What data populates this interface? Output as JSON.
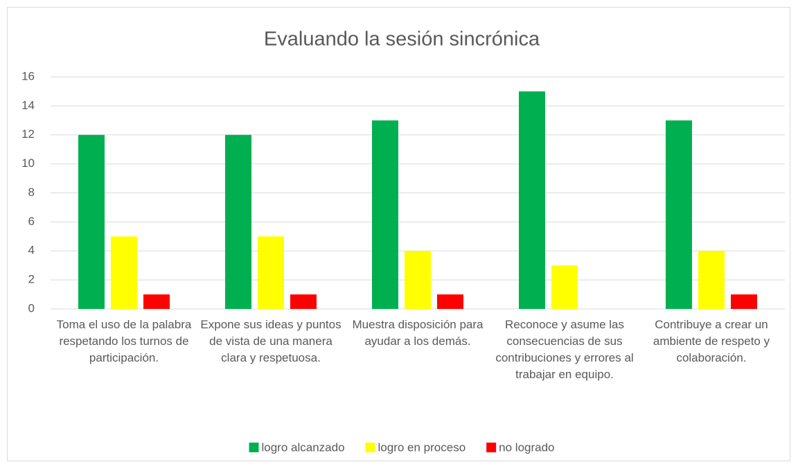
{
  "chart_data": {
    "type": "bar",
    "title": "Evaluando la sesión sincrónica",
    "categories": [
      "Toma el uso de la palabra respetando los turnos de participación.",
      "Expone sus ideas y puntos de vista de una manera clara y respetuosa.",
      "Muestra disposición para ayudar a los demás.",
      "Reconoce y asume las consecuencias de sus contribuciones y errores al trabajar en equipo.",
      "Contribuye a crear un ambiente de respeto y colaboración."
    ],
    "series": [
      {
        "name": "logro alcanzado",
        "color": "#00b050",
        "values": [
          12,
          12,
          13,
          15,
          13
        ]
      },
      {
        "name": "logro en proceso",
        "color": "#ffff00",
        "values": [
          5,
          5,
          4,
          3,
          4
        ]
      },
      {
        "name": "no logrado",
        "color": "#ff0000",
        "values": [
          1,
          1,
          1,
          0,
          1
        ]
      }
    ],
    "ylim": [
      0,
      16
    ],
    "yticks": [
      0,
      2,
      4,
      6,
      8,
      10,
      12,
      14,
      16
    ],
    "grid": true,
    "legend": "bottom"
  }
}
